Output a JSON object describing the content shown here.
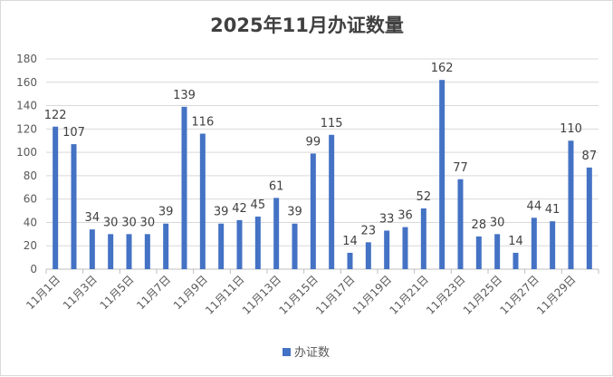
{
  "chart_data": {
    "type": "bar",
    "title": "2025年11月办证数量",
    "xlabel": "",
    "ylabel": "",
    "ylim": [
      0,
      180
    ],
    "yticks": [
      0,
      20,
      40,
      60,
      80,
      100,
      120,
      140,
      160,
      180
    ],
    "grid": true,
    "legend_position": "bottom",
    "categories": [
      "11月1日",
      "11月2日",
      "11月3日",
      "11月4日",
      "11月5日",
      "11月6日",
      "11月7日",
      "11月8日",
      "11月9日",
      "11月10日",
      "11月11日",
      "11月12日",
      "11月13日",
      "11月14日",
      "11月15日",
      "11月16日",
      "11月17日",
      "11月18日",
      "11月19日",
      "11月20日",
      "11月21日",
      "11月22日",
      "11月23日",
      "11月24日",
      "11月25日",
      "11月26日",
      "11月27日",
      "11月28日",
      "11月29日",
      "11月30日"
    ],
    "xtick_labels": [
      "11月1日",
      "11月3日",
      "11月5日",
      "11月7日",
      "11月9日",
      "11月11日",
      "11月13日",
      "11月15日",
      "11月17日",
      "11月19日",
      "11月21日",
      "11月23日",
      "11月25日",
      "11月27日",
      "11月29日"
    ],
    "series": [
      {
        "name": "办证数",
        "color": "#4472c4",
        "values": [
          122,
          107,
          34,
          30,
          30,
          30,
          39,
          139,
          116,
          39,
          42,
          45,
          61,
          39,
          99,
          115,
          14,
          23,
          33,
          36,
          52,
          162,
          77,
          28,
          30,
          14,
          44,
          41,
          110,
          87
        ]
      }
    ]
  }
}
